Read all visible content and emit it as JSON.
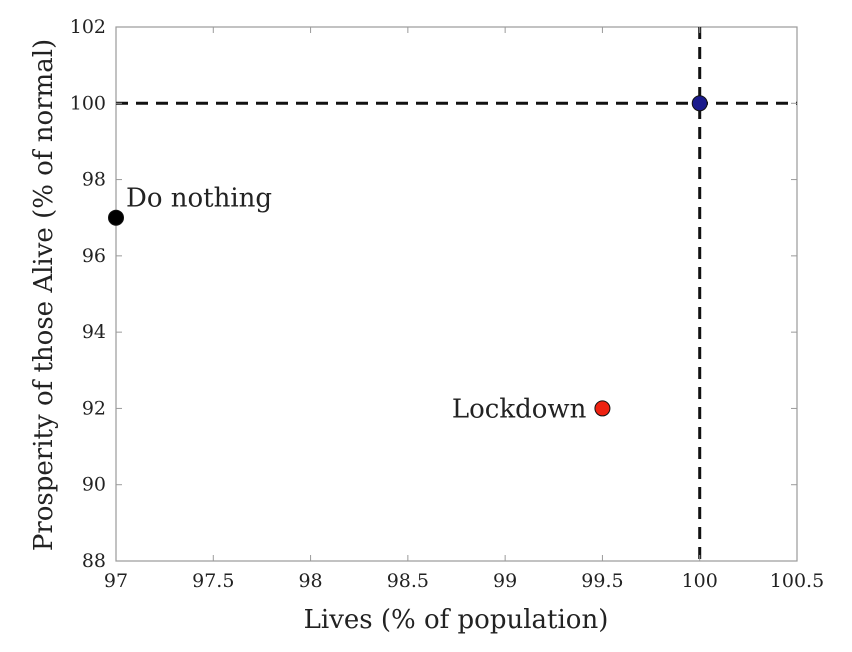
{
  "chart_data": {
    "type": "scatter",
    "title": "",
    "xlabel": "Lives (% of population)",
    "ylabel": "Prosperity of those Alive (% of normal)",
    "xlim": [
      97,
      100.5
    ],
    "ylim": [
      88,
      102
    ],
    "xticks": [
      97,
      97.5,
      98,
      98.5,
      99,
      99.5,
      100,
      100.5
    ],
    "xtick_labels": [
      "97",
      "97.5",
      "98",
      "98.5",
      "99",
      "99.5",
      "100",
      "100.5"
    ],
    "yticks": [
      88,
      90,
      92,
      94,
      96,
      98,
      100,
      102
    ],
    "ytick_labels": [
      "88",
      "90",
      "92",
      "94",
      "96",
      "98",
      "100",
      "102"
    ],
    "grid": false,
    "points": [
      {
        "name": "do-nothing",
        "x": 97,
        "y": 97,
        "label": "Do nothing",
        "label_side": "right",
        "color": "#000000"
      },
      {
        "name": "lockdown",
        "x": 99.5,
        "y": 92,
        "label": "Lockdown",
        "label_side": "left",
        "color": "#ee2211"
      },
      {
        "name": "ideal",
        "x": 100,
        "y": 100,
        "label": "",
        "label_side": "none",
        "color": "#1a1a8c"
      }
    ],
    "reference_lines": [
      {
        "name": "horizontal-reference",
        "orientation": "horizontal",
        "value": 100,
        "style": "dashed",
        "color": "#111111"
      },
      {
        "name": "vertical-reference",
        "orientation": "vertical",
        "value": 100,
        "style": "dashed",
        "color": "#111111"
      }
    ]
  }
}
